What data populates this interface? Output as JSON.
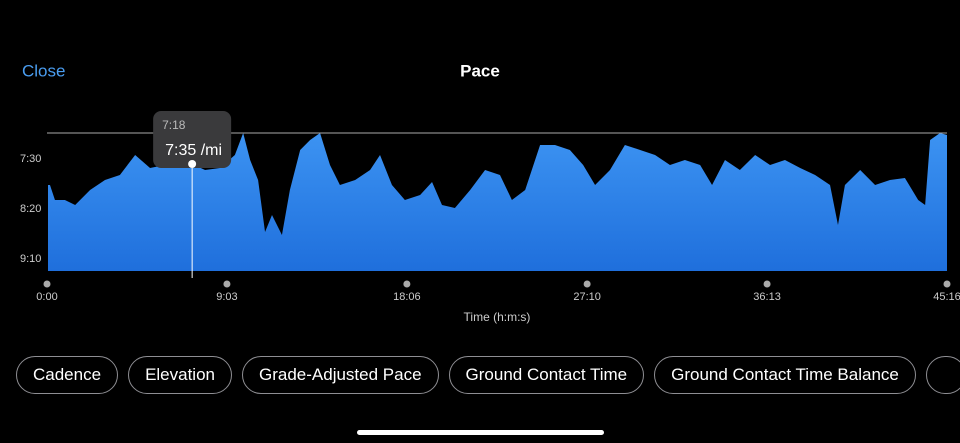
{
  "header": {
    "close": "Close",
    "title": "Pace"
  },
  "chart_data": {
    "type": "area",
    "x_label": "Time (h:m:s)",
    "color": "#2f84ec",
    "x": [
      3,
      9,
      24,
      54,
      85,
      130,
      175,
      220,
      266,
      311,
      356,
      401,
      438,
      477,
      522,
      567,
      592,
      613,
      637,
      658,
      679,
      709,
      733,
      764,
      794,
      824,
      854,
      884,
      930,
      975,
      1005,
      1041,
      1080,
      1126,
      1162,
      1192,
      1231,
      1277,
      1322,
      1367,
      1403,
      1443,
      1488,
      1533,
      1578,
      1618,
      1654,
      1699,
      1744,
      1790,
      1835,
      1880,
      1925,
      1971,
      2007,
      2046,
      2091,
      2137,
      2182,
      2227,
      2273,
      2318,
      2363,
      2387,
      2408,
      2454,
      2499,
      2544,
      2589,
      2629,
      2650,
      2665,
      2695,
      2716
    ],
    "values": [
      476,
      476,
      491,
      491,
      496,
      481,
      471,
      466,
      446,
      459,
      456,
      456,
      455,
      461,
      459,
      446,
      424,
      451,
      471,
      523,
      506,
      526,
      481,
      441,
      431,
      424,
      456,
      476,
      471,
      461,
      446,
      476,
      491,
      486,
      473,
      496,
      499,
      481,
      461,
      466,
      491,
      481,
      436,
      436,
      441,
      456,
      476,
      461,
      436,
      441,
      446,
      456,
      451,
      456,
      476,
      451,
      461,
      446,
      456,
      451,
      459,
      466,
      476,
      516,
      476,
      461,
      476,
      471,
      469,
      491,
      496,
      431,
      424,
      426
    ],
    "xlim": [
      0,
      2716
    ],
    "xticks": [
      {
        "value": 0,
        "label": "0:00"
      },
      {
        "value": 543,
        "label": "9:03"
      },
      {
        "value": 1086,
        "label": "18:06"
      },
      {
        "value": 1630,
        "label": "27:10"
      },
      {
        "value": 2173,
        "label": "36:13"
      },
      {
        "value": 2716,
        "label": "45:16"
      }
    ],
    "ylim": [
      562,
      424
    ],
    "yticks": [
      {
        "value": 450,
        "label": "7:30"
      },
      {
        "value": 500,
        "label": "8:20"
      },
      {
        "value": 550,
        "label": "9:10"
      }
    ],
    "cursor": {
      "x": 438,
      "value": 455,
      "time_label": "7:18",
      "value_label": "7:35 /mi"
    }
  },
  "chips": [
    "Cadence",
    "Elevation",
    "Grade-Adjusted Pace",
    "Ground Contact Time",
    "Ground Contact Time Balance"
  ]
}
